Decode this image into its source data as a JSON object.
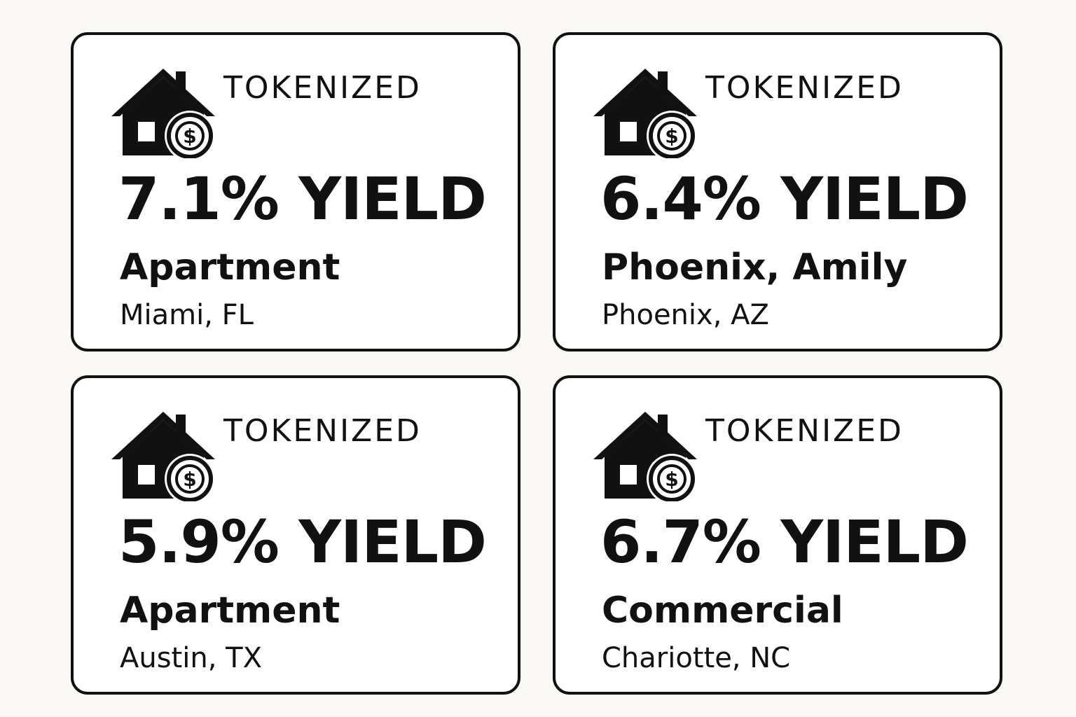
{
  "cards": [
    {
      "tag": "TOKENIZED",
      "yield": "7.1% YIELD",
      "property_type": "Apartment",
      "location": "Miami, FL",
      "icon": "house-dollar-icon"
    },
    {
      "tag": "TOKENIZED",
      "yield": "6.4% YIELD",
      "property_type": "Phoenix, Amily",
      "location": "Phoenix, AZ",
      "icon": "house-dollar-icon"
    },
    {
      "tag": "TOKENIZED",
      "yield": "5.9% YIELD",
      "property_type": "Apartment",
      "location": "Austin, TX",
      "icon": "house-dollar-icon"
    },
    {
      "tag": "TOKENIZED",
      "yield": "6.7% YIELD",
      "property_type": "Commercial",
      "location": "Chariotte, NC",
      "icon": "house-dollar-icon"
    }
  ],
  "colors": {
    "ink": "#111111",
    "card_bg": "#ffffff",
    "page_bg": "#faf9f6"
  }
}
